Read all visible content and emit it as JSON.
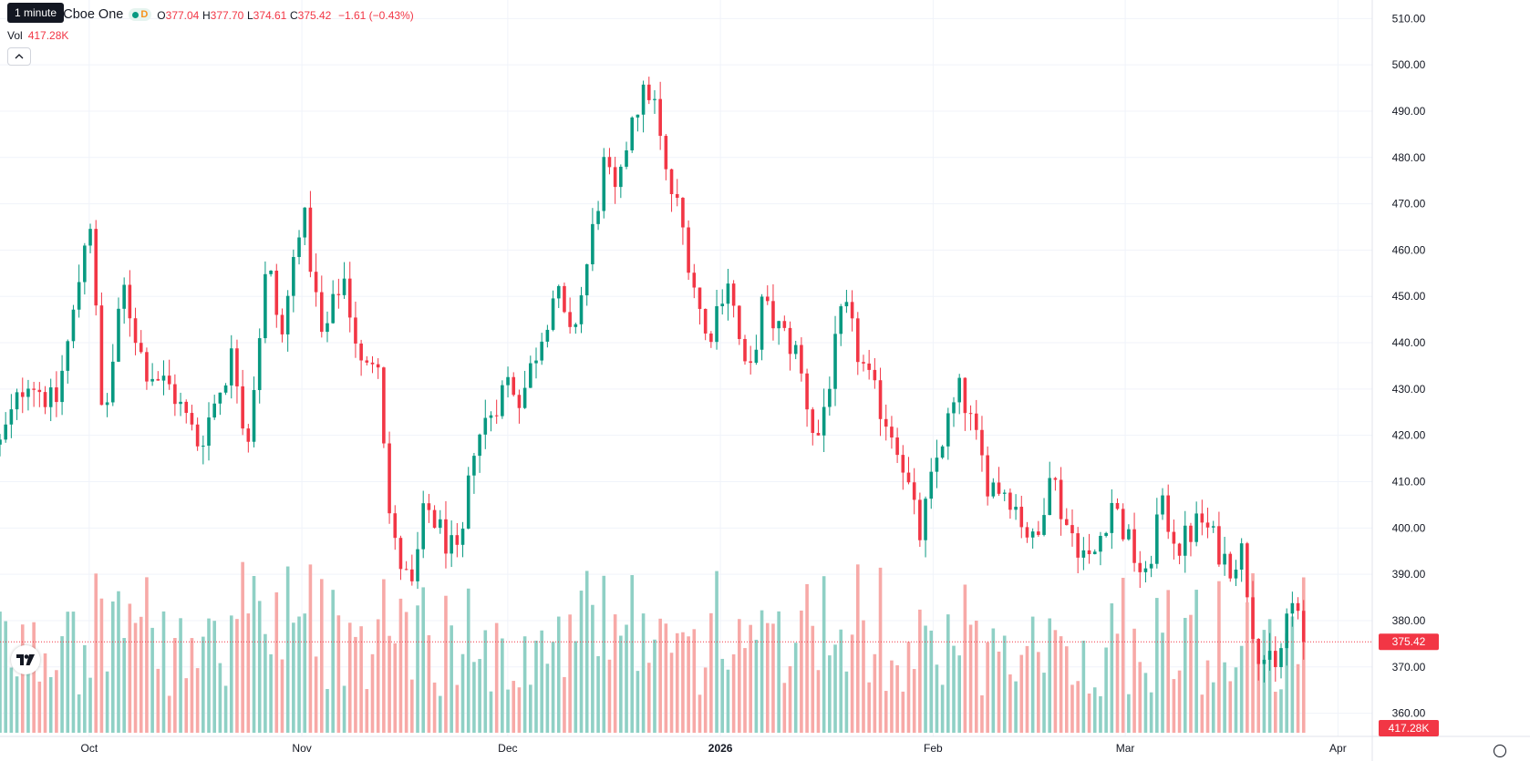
{
  "legend": {
    "symbol": "nc. · 4h · Cboe One",
    "d_badge": "D",
    "o_label": "O",
    "o_value": "377.04",
    "h_label": "H",
    "h_value": "377.70",
    "l_label": "L",
    "l_value": "374.61",
    "c_label": "C",
    "c_value": "375.42",
    "change": "−1.61 (−0.43%)"
  },
  "tooltip": "1 minute",
  "volume": {
    "label": "Vol",
    "value": "417.28K"
  },
  "collapse_icon": "chevron-up-icon",
  "logo_text": "TV",
  "colors": {
    "up": "#089981",
    "down": "#f23645",
    "up_vol": "#8fd0c5",
    "down_vol": "#f7a9a7"
  },
  "chart_data": {
    "type": "candlestick",
    "y_ticks": [
      360,
      370,
      380,
      390,
      400,
      410,
      420,
      430,
      440,
      450,
      460,
      470,
      480,
      490,
      500,
      510
    ],
    "y_tick_labels": [
      "360.00",
      "370.00",
      "380.00",
      "390.00",
      "400.00",
      "410.00",
      "420.00",
      "430.00",
      "440.00",
      "450.00",
      "460.00",
      "470.00",
      "480.00",
      "490.00",
      "500.00",
      "510.00"
    ],
    "ylim": [
      355,
      514
    ],
    "x_range": [
      "2025-09-18",
      "2026-04-06"
    ],
    "x_ticks": [
      "2025-10-01",
      "2025-11-01",
      "2025-12-01",
      "2026-01-01",
      "2026-02-01",
      "2026-03-01",
      "2026-04-01"
    ],
    "x_tick_labels": [
      "Oct",
      "Nov",
      "Dec",
      "2026",
      "Feb",
      "Mar",
      "Apr"
    ],
    "last_price": 375.42,
    "last_price_label": "375.42",
    "last_volume_label": "417.28K",
    "volume_max_k": 900,
    "anchors": [
      {
        "date": "2025-09-18",
        "price": 418
      },
      {
        "date": "2025-09-22",
        "price": 433
      },
      {
        "date": "2025-09-26",
        "price": 426
      },
      {
        "date": "2025-09-29",
        "price": 448
      },
      {
        "date": "2025-10-01",
        "price": 470
      },
      {
        "date": "2025-10-03",
        "price": 421
      },
      {
        "date": "2025-10-06",
        "price": 452
      },
      {
        "date": "2025-10-09",
        "price": 435
      },
      {
        "date": "2025-10-13",
        "price": 430
      },
      {
        "date": "2025-10-17",
        "price": 418
      },
      {
        "date": "2025-10-22",
        "price": 438
      },
      {
        "date": "2025-10-24",
        "price": 418
      },
      {
        "date": "2025-10-27",
        "price": 458
      },
      {
        "date": "2025-10-29",
        "price": 440
      },
      {
        "date": "2025-11-01",
        "price": 470
      },
      {
        "date": "2025-11-04",
        "price": 440
      },
      {
        "date": "2025-11-07",
        "price": 455
      },
      {
        "date": "2025-11-10",
        "price": 432
      },
      {
        "date": "2025-11-12",
        "price": 440
      },
      {
        "date": "2025-11-14",
        "price": 398
      },
      {
        "date": "2025-11-17",
        "price": 386
      },
      {
        "date": "2025-11-19",
        "price": 405
      },
      {
        "date": "2025-11-24",
        "price": 392
      },
      {
        "date": "2025-11-26",
        "price": 418
      },
      {
        "date": "2025-12-01",
        "price": 432
      },
      {
        "date": "2025-12-03",
        "price": 428
      },
      {
        "date": "2025-12-08",
        "price": 452
      },
      {
        "date": "2025-12-10",
        "price": 440
      },
      {
        "date": "2025-12-12",
        "price": 452
      },
      {
        "date": "2025-12-15",
        "price": 478
      },
      {
        "date": "2025-12-17",
        "price": 470
      },
      {
        "date": "2025-12-19",
        "price": 490
      },
      {
        "date": "2025-12-22",
        "price": 495
      },
      {
        "date": "2025-12-24",
        "price": 476
      },
      {
        "date": "2025-12-26",
        "price": 468
      },
      {
        "date": "2025-12-30",
        "price": 440
      },
      {
        "date": "2026-01-02",
        "price": 455
      },
      {
        "date": "2026-01-05",
        "price": 430
      },
      {
        "date": "2026-01-07",
        "price": 448
      },
      {
        "date": "2026-01-12",
        "price": 438
      },
      {
        "date": "2026-01-15",
        "price": 418
      },
      {
        "date": "2026-01-19",
        "price": 448
      },
      {
        "date": "2026-01-21",
        "price": 438
      },
      {
        "date": "2026-01-23",
        "price": 430
      },
      {
        "date": "2026-01-27",
        "price": 418
      },
      {
        "date": "2026-01-30",
        "price": 398
      },
      {
        "date": "2026-02-02",
        "price": 418
      },
      {
        "date": "2026-02-05",
        "price": 430
      },
      {
        "date": "2026-02-09",
        "price": 410
      },
      {
        "date": "2026-02-12",
        "price": 408
      },
      {
        "date": "2026-02-16",
        "price": 395
      },
      {
        "date": "2026-02-18",
        "price": 414
      },
      {
        "date": "2026-02-20",
        "price": 402
      },
      {
        "date": "2026-02-24",
        "price": 392
      },
      {
        "date": "2026-02-27",
        "price": 406
      },
      {
        "date": "2026-03-02",
        "price": 395
      },
      {
        "date": "2026-03-04",
        "price": 388
      },
      {
        "date": "2026-03-06",
        "price": 405
      },
      {
        "date": "2026-03-09",
        "price": 396
      },
      {
        "date": "2026-03-12",
        "price": 402
      },
      {
        "date": "2026-03-16",
        "price": 392
      },
      {
        "date": "2026-03-18",
        "price": 395
      },
      {
        "date": "2026-03-20",
        "price": 375
      },
      {
        "date": "2026-03-23",
        "price": 368
      },
      {
        "date": "2026-03-25",
        "price": 385
      },
      {
        "date": "2026-03-27",
        "price": 375.42
      }
    ]
  }
}
